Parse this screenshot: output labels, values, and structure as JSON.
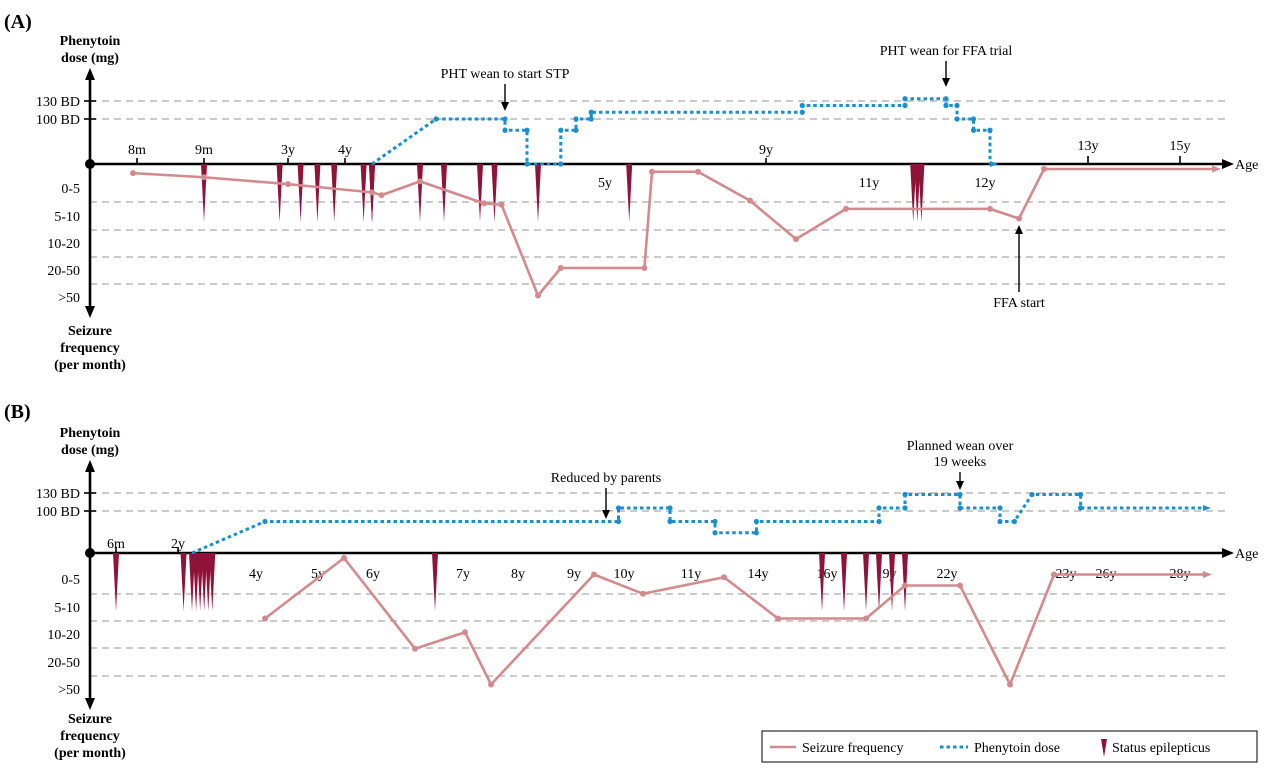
{
  "chart_data": [
    {
      "type": "line",
      "panel_label": "(A)",
      "upper_axis_label": [
        "Phenytoin",
        "dose (mg)"
      ],
      "lower_axis_label": [
        "Seizure",
        "frequency",
        "(per month)"
      ],
      "x_axis_label": "Age",
      "dose_ticks": [
        "130 BD",
        "100 BD"
      ],
      "frequency_ticks": [
        "0-5",
        "5-10",
        "10-20",
        "20-50",
        ">50"
      ],
      "age_ticks": [
        "8m",
        "9m",
        "3y",
        "4y",
        "5y",
        "9y",
        "11y",
        "12y",
        "13y",
        "15y"
      ],
      "annotations": [
        "PHT wean to start STP",
        "PHT wean for FFA trial",
        "FFA start"
      ],
      "series": [
        {
          "name": "Seizure frequency",
          "points": [
            [
              0.9,
              0.15
            ],
            [
              1.6,
              0.3
            ],
            [
              2.6,
              0.55
            ],
            [
              3.6,
              0.85
            ],
            [
              4.3,
              0.95
            ],
            [
              4.5,
              0.45
            ],
            [
              5.3,
              1.25
            ],
            [
              5.8,
              1.3
            ],
            [
              6.2,
              4.6
            ],
            [
              6.5,
              3.6
            ],
            [
              7.6,
              3.6
            ],
            [
              7.7,
              0.1
            ],
            [
              8.4,
              0.1
            ],
            [
              9.1,
              1.15
            ],
            [
              9.7,
              2.55
            ],
            [
              10.5,
              1.45
            ],
            [
              12.1,
              1.45
            ],
            [
              12.4,
              1.8
            ],
            [
              12.75,
              0.0
            ],
            [
              14.95,
              0.0
            ]
          ]
        },
        {
          "name": "Phenytoin dose",
          "points": [
            [
              4.25,
              0.0
            ],
            [
              4.7,
              100
            ],
            [
              5.9,
              100
            ],
            [
              5.9,
              75
            ],
            [
              6.1,
              75
            ],
            [
              6.1,
              0
            ],
            [
              6.5,
              0
            ],
            [
              6.5,
              75
            ],
            [
              6.7,
              75
            ],
            [
              6.7,
              100
            ],
            [
              6.9,
              100
            ],
            [
              6.9,
              115
            ],
            [
              9.8,
              115
            ],
            [
              9.8,
              130
            ],
            [
              10.8,
              130
            ],
            [
              10.8,
              145
            ],
            [
              11.3,
              145
            ],
            [
              11.3,
              130
            ],
            [
              11.5,
              130
            ],
            [
              11.5,
              100
            ],
            [
              11.8,
              100
            ],
            [
              11.8,
              75
            ],
            [
              12.1,
              75
            ],
            [
              12.1,
              0
            ]
          ]
        },
        {
          "name": "Status epilepticus",
          "events": [
            1.6,
            2.5,
            2.75,
            2.95,
            3.15,
            3.5,
            3.8,
            4.15,
            4.25,
            4.5,
            4.8,
            5.25,
            5.6,
            6.2,
            7.4,
            10.9,
            10.95,
            11.0
          ]
        }
      ]
    },
    {
      "type": "line",
      "panel_label": "(B)",
      "upper_axis_label": [
        "Phenytoin",
        "dose (mg)"
      ],
      "lower_axis_label": [
        "Seizure",
        "frequency",
        "(per month)"
      ],
      "x_axis_label": "Age",
      "dose_ticks": [
        "130 BD",
        "100 BD"
      ],
      "frequency_ticks": [
        "0-5",
        "5-10",
        "10-20",
        "20-50",
        ">50"
      ],
      "age_ticks": [
        "6m",
        "2y",
        "4y",
        "5y",
        "6y",
        "7y",
        "8y",
        "9y",
        "10y",
        "11y",
        "14y",
        "16y",
        "19y",
        "22y",
        "23y",
        "26y",
        "28y"
      ],
      "annotations": [
        "Reduced by parents",
        "Planned wean over 19 weeks"
      ],
      "series": [
        {
          "name": "Seizure frequency",
          "points": [
            [
              2.5,
              2.2
            ],
            [
              3.5,
              0.0
            ],
            [
              4.3,
              3.3
            ],
            [
              4.8,
              2.7
            ],
            [
              5.1,
              4.6
            ],
            [
              6.2,
              0.6
            ],
            [
              6.6,
              1.3
            ],
            [
              7.5,
              0.7
            ],
            [
              8.0,
              2.2
            ],
            [
              9.0,
              2.2
            ],
            [
              9.6,
              1.0
            ],
            [
              10.2,
              1.0
            ],
            [
              11.0,
              4.6
            ],
            [
              11.5,
              0.6
            ],
            [
              12.9,
              0.6
            ]
          ]
        },
        {
          "name": "Phenytoin dose",
          "points": [
            [
              1.6,
              0
            ],
            [
              2.5,
              70
            ],
            [
              6.4,
              70
            ],
            [
              6.4,
              100
            ],
            [
              6.9,
              100
            ],
            [
              6.9,
              70
            ],
            [
              7.4,
              70
            ],
            [
              7.4,
              45
            ],
            [
              7.8,
              45
            ],
            [
              7.8,
              70
            ],
            [
              9.2,
              70
            ],
            [
              9.2,
              100
            ],
            [
              9.6,
              100
            ],
            [
              9.6,
              130
            ],
            [
              10.5,
              130
            ],
            [
              10.5,
              100
            ],
            [
              10.9,
              100
            ],
            [
              10.9,
              70
            ],
            [
              11.05,
              70
            ],
            [
              11.25,
              130
            ],
            [
              11.75,
              130
            ],
            [
              11.75,
              100
            ],
            [
              12.9,
              100
            ]
          ]
        },
        {
          "name": "Status epilepticus",
          "events": [
            0.7,
            1.5,
            1.6,
            1.65,
            1.7,
            1.75,
            1.8,
            1.85,
            4.5,
            8.5,
            8.75,
            9.0,
            9.2,
            9.4,
            9.6
          ]
        }
      ]
    }
  ],
  "legend": {
    "seizure": "Seizure frequency",
    "dose": "Phenytoin dose",
    "status": "Status epilepticus"
  },
  "colors": {
    "seizure": "#d48a8c",
    "dose": "#1a8fd0",
    "status": "#8f1238"
  }
}
